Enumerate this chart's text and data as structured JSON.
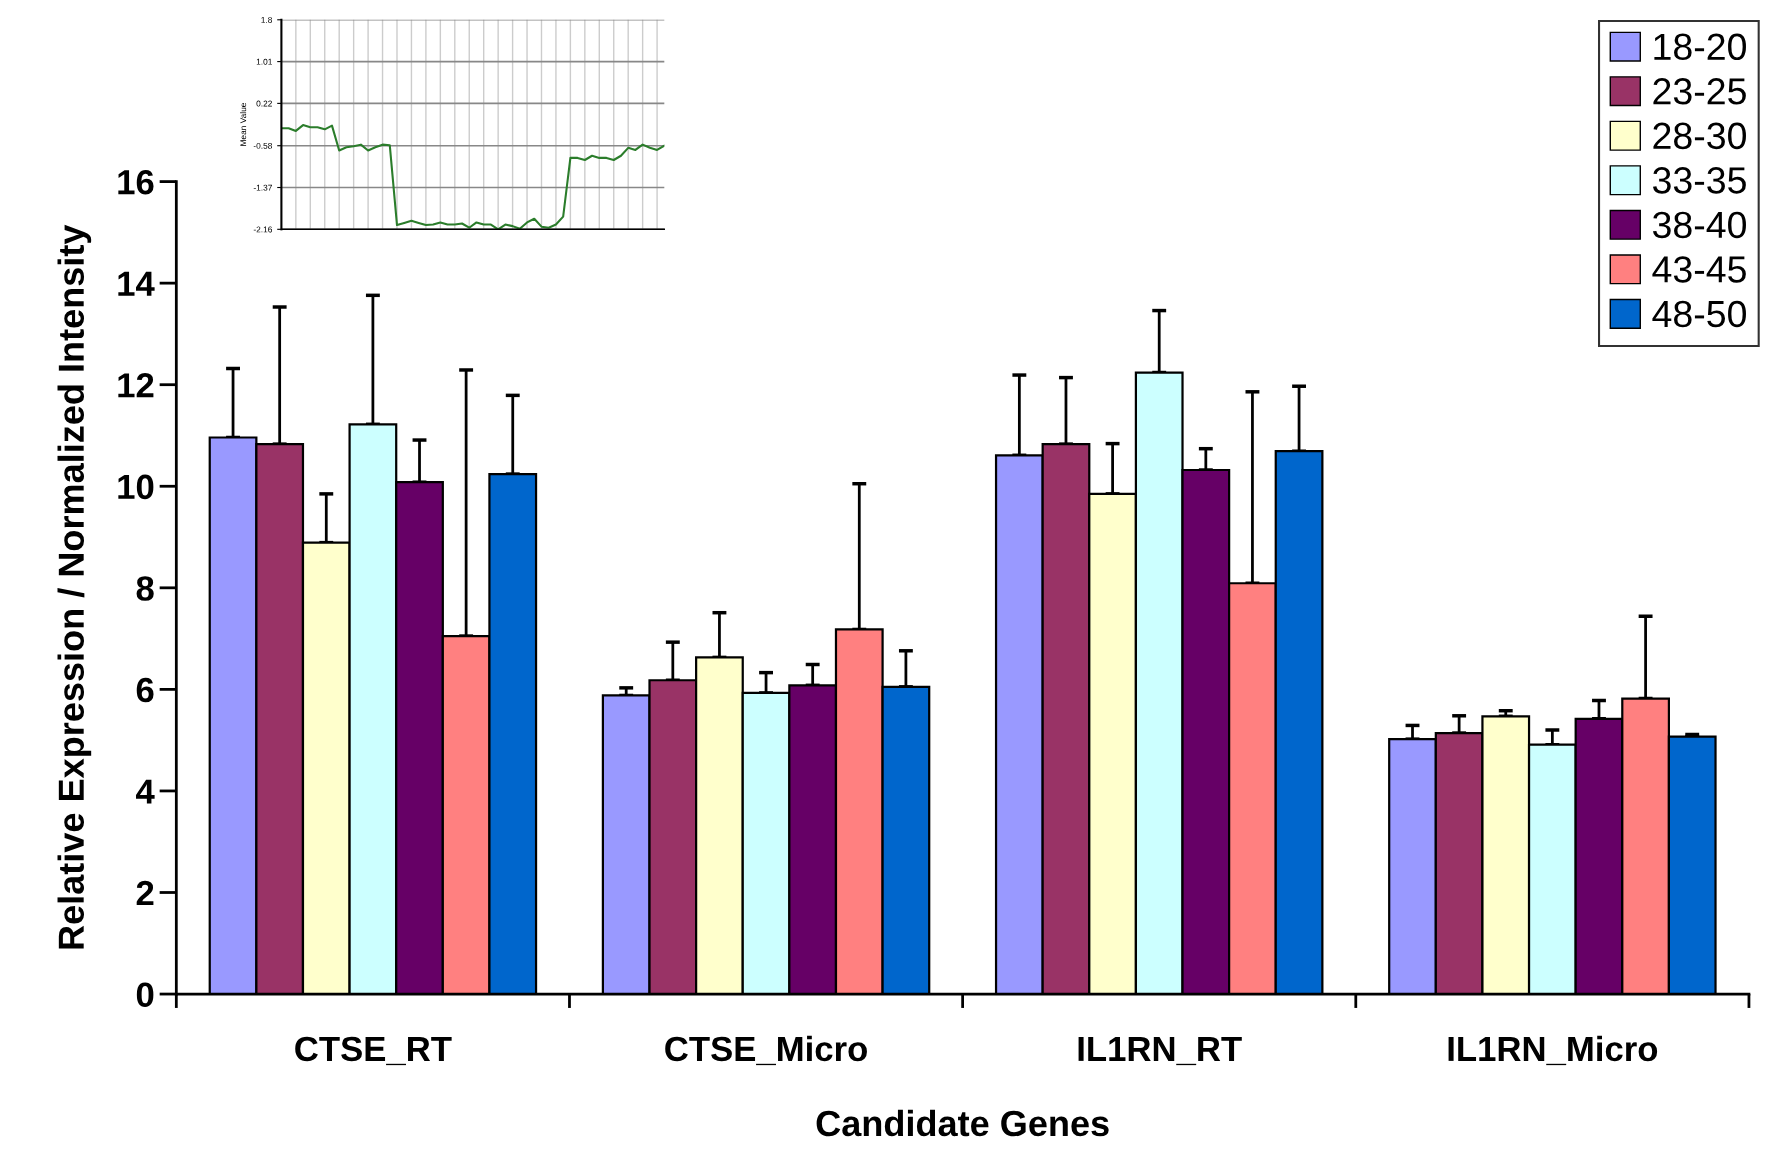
{
  "chart_data": [
    {
      "type": "bar",
      "xlabel": "Candidate Genes",
      "ylabel": "Relative Expression / Normalized Intensity",
      "categories": [
        "CTSE_RT",
        "CTSE_Micro",
        "IL1RN_RT",
        "IL1RN_Micro"
      ],
      "ylim": [
        0,
        16
      ],
      "yticks": [
        0,
        2,
        4,
        6,
        8,
        10,
        12,
        14,
        16
      ],
      "grid": false,
      "legend": "top right",
      "series": [
        {
          "name": "18-20",
          "color": "#9999ff",
          "values": [
            10.96,
            5.88,
            10.61,
            5.02
          ],
          "errors": [
            [
              10.96,
              12.32
            ],
            [
              5.88,
              6.03
            ],
            [
              10.61,
              12.19
            ],
            [
              5.02,
              5.29
            ]
          ]
        },
        {
          "name": "23-25",
          "color": "#993366",
          "values": [
            10.83,
            6.18,
            10.83,
            5.14
          ],
          "errors": [
            [
              10.83,
              13.53
            ],
            [
              6.18,
              6.93
            ],
            [
              10.83,
              12.14
            ],
            [
              5.14,
              5.48
            ]
          ]
        },
        {
          "name": "28-30",
          "color": "#ffffcc",
          "values": [
            8.89,
            6.63,
            9.85,
            5.47
          ],
          "errors": [
            [
              8.89,
              9.85
            ],
            [
              6.63,
              7.51
            ],
            [
              9.85,
              10.84
            ],
            [
              5.47,
              5.58
            ]
          ]
        },
        {
          "name": "33-35",
          "color": "#ccffff",
          "values": [
            11.22,
            5.93,
            12.24,
            4.91
          ],
          "errors": [
            [
              11.22,
              13.76
            ],
            [
              5.93,
              6.33
            ],
            [
              12.24,
              13.46
            ],
            [
              4.91,
              5.2
            ]
          ]
        },
        {
          "name": "38-40",
          "color": "#660066",
          "values": [
            10.08,
            6.08,
            10.32,
            5.42
          ],
          "errors": [
            [
              10.08,
              10.91
            ],
            [
              6.08,
              6.49
            ],
            [
              10.32,
              10.74
            ],
            [
              5.42,
              5.78
            ]
          ]
        },
        {
          "name": "43-45",
          "color": "#ff8080",
          "values": [
            7.05,
            7.18,
            8.09,
            5.82
          ],
          "errors": [
            [
              7.05,
              12.29
            ],
            [
              7.18,
              10.05
            ],
            [
              8.09,
              11.86
            ],
            [
              5.82,
              7.44
            ]
          ]
        },
        {
          "name": "48-50",
          "color": "#0066cc",
          "values": [
            10.24,
            6.05,
            10.69,
            5.07
          ],
          "errors": [
            [
              10.24,
              11.79
            ],
            [
              6.05,
              6.76
            ],
            [
              10.69,
              11.97
            ],
            [
              5.07,
              5.11
            ]
          ]
        }
      ]
    },
    {
      "type": "line",
      "ylabel": "Mean Value",
      "tick_labels": "y",
      "grid": true,
      "marker": "none",
      "line_style": "solid",
      "categories": [
        null,
        null,
        null,
        null,
        null,
        null,
        null,
        null,
        null,
        null,
        null,
        null,
        null,
        null,
        null,
        null,
        null,
        null,
        null,
        null,
        null,
        null,
        null,
        null,
        null,
        null,
        null,
        null,
        null,
        null,
        null,
        null,
        null,
        null,
        null,
        null,
        null,
        null,
        null,
        null,
        null,
        null,
        null,
        null,
        null,
        null,
        null,
        null,
        null,
        null,
        null,
        null,
        null,
        null
      ],
      "ylim": [
        -2.16,
        1.8
      ],
      "yticks": [
        -2.16,
        -1.37,
        -0.58,
        0.22,
        1.01,
        1.8
      ],
      "series": [
        {
          "color": "#2b7d2b",
          "values": [
            -0.25,
            -0.25,
            -0.3,
            -0.19,
            -0.23,
            -0.23,
            -0.27,
            -0.2,
            -0.67,
            -0.61,
            -0.59,
            -0.56,
            -0.67,
            -0.61,
            -0.56,
            -0.57,
            -2.08,
            -2.04,
            -2.0,
            -2.04,
            -2.08,
            -2.07,
            -2.03,
            -2.07,
            -2.07,
            -2.05,
            -2.13,
            -2.03,
            -2.07,
            -2.07,
            -2.16,
            -2.07,
            -2.1,
            -2.15,
            -2.03,
            -1.96,
            -2.11,
            -2.13,
            -2.07,
            -1.92,
            -0.81,
            -0.81,
            -0.85,
            -0.77,
            -0.81,
            -0.81,
            -0.85,
            -0.77,
            -0.62,
            -0.66,
            -0.56,
            -0.62,
            -0.66,
            -0.58
          ]
        }
      ]
    }
  ]
}
